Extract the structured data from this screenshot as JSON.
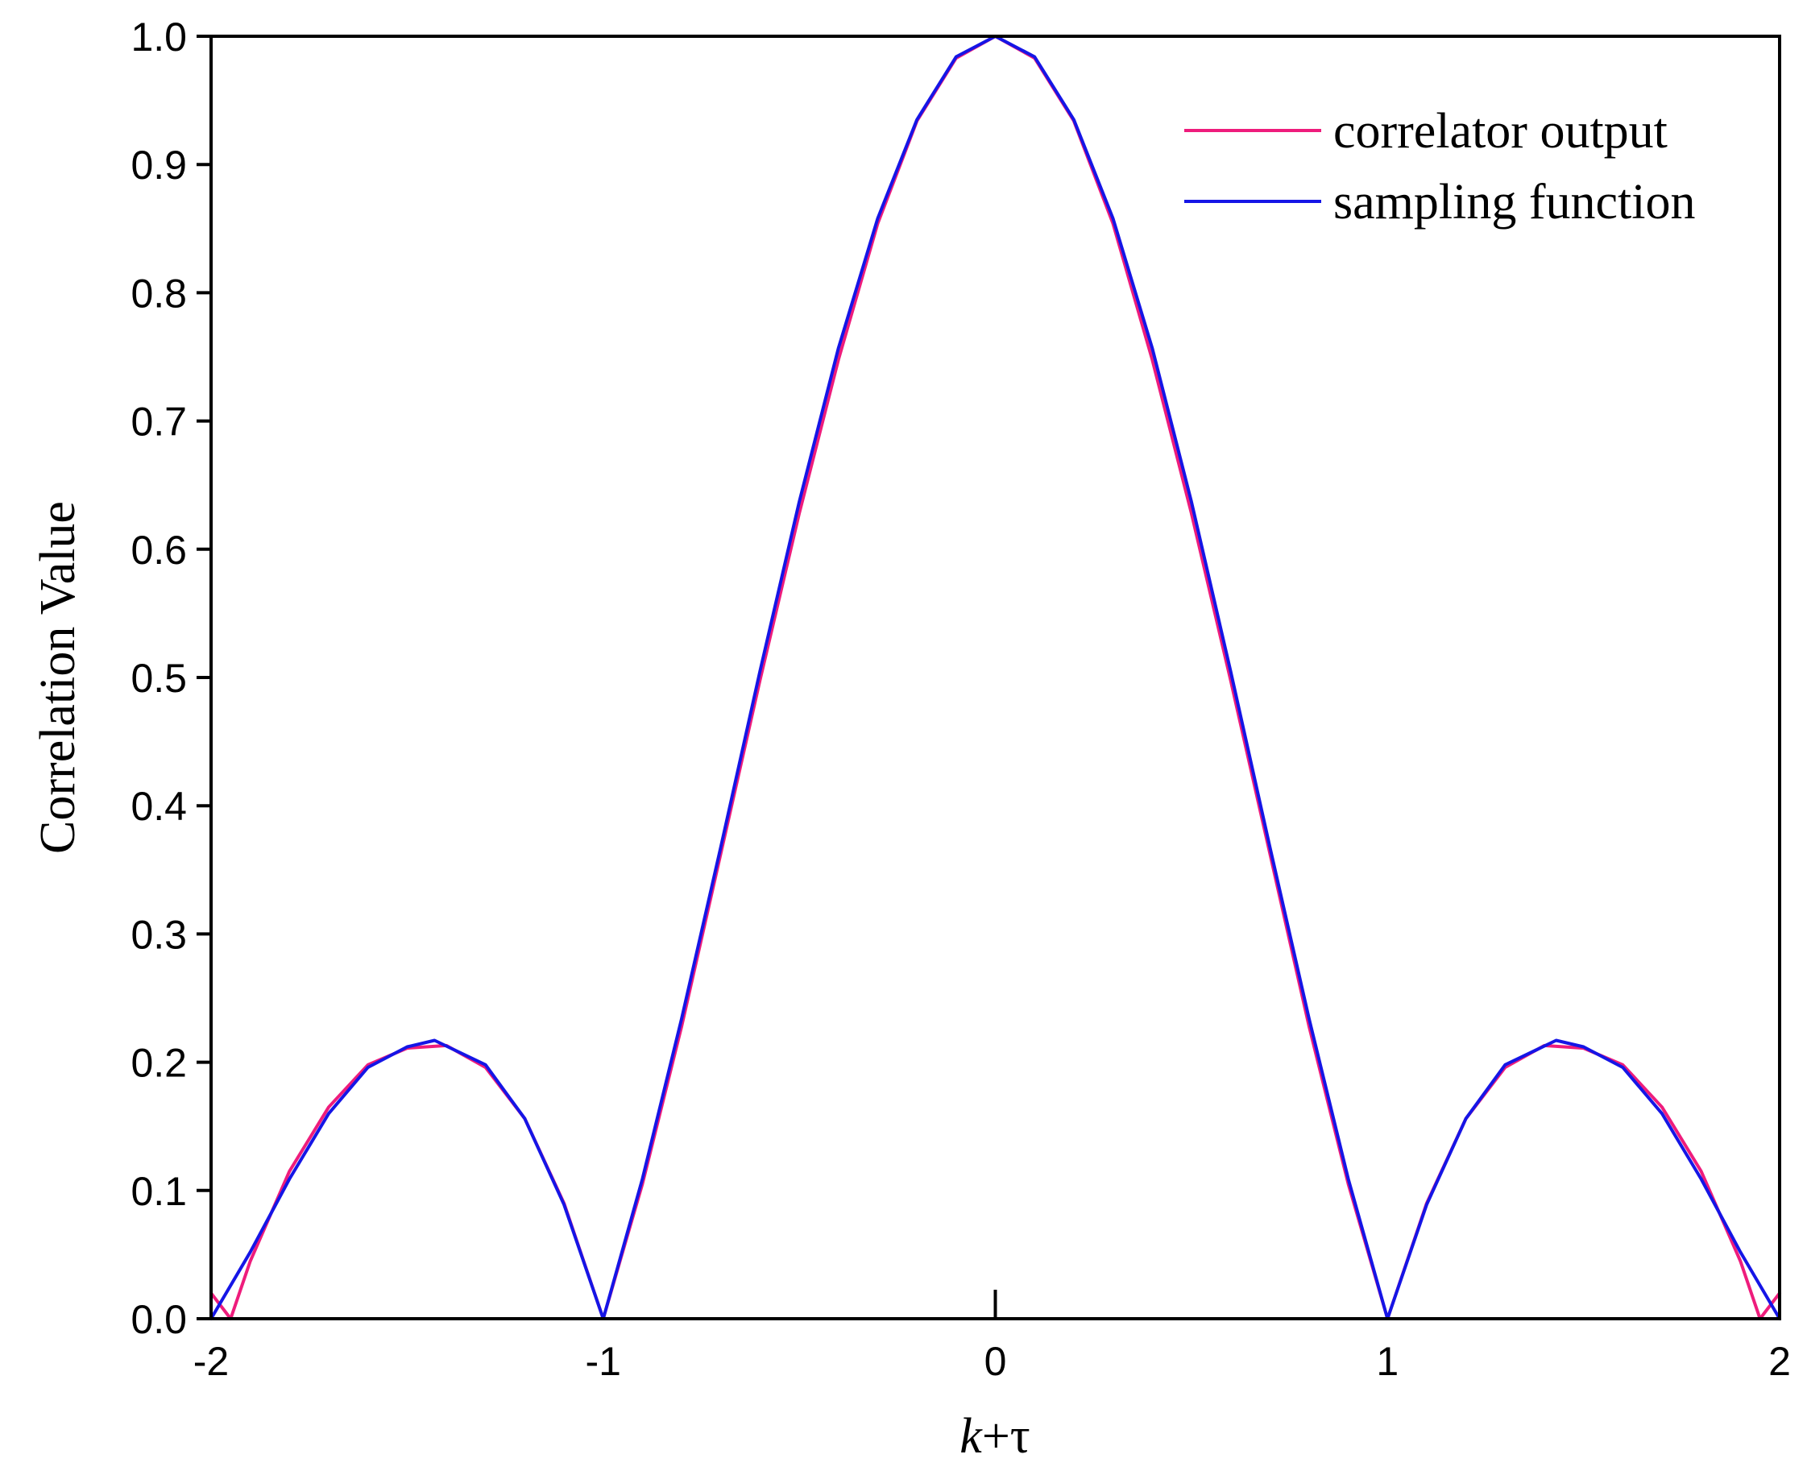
{
  "chart_data": {
    "type": "line",
    "title": "",
    "xlabel_var": "k",
    "xlabel_rest": "+τ",
    "ylabel": "Correlation Value",
    "xlim": [
      -2,
      2
    ],
    "ylim": [
      0,
      1.0
    ],
    "x_ticks": [
      -2,
      -1,
      0,
      1,
      2
    ],
    "x_tick_labels": [
      "-2",
      "-1",
      "0",
      "1",
      "2"
    ],
    "y_ticks": [
      0.0,
      0.1,
      0.2,
      0.3,
      0.4,
      0.5,
      0.6,
      0.7,
      0.8,
      0.9,
      1.0
    ],
    "y_tick_labels": [
      "0.0",
      "0.1",
      "0.2",
      "0.3",
      "0.4",
      "0.5",
      "0.6",
      "0.7",
      "0.8",
      "0.9",
      "1.0"
    ],
    "grid": false,
    "legend_position": "top-right",
    "series": [
      {
        "name": "correlator output",
        "color": "#ee1c7c",
        "points": [
          [
            -2.0,
            0.02
          ],
          [
            -1.95,
            0.0
          ],
          [
            -1.9,
            0.045
          ],
          [
            -1.8,
            0.115
          ],
          [
            -1.7,
            0.165
          ],
          [
            -1.6,
            0.198
          ],
          [
            -1.5,
            0.211
          ],
          [
            -1.4,
            0.213
          ],
          [
            -1.3,
            0.196
          ],
          [
            -1.2,
            0.156
          ],
          [
            -1.1,
            0.09
          ],
          [
            -1.0,
            0.0
          ],
          [
            -0.9,
            0.105
          ],
          [
            -0.8,
            0.228
          ],
          [
            -0.7,
            0.363
          ],
          [
            -0.6,
            0.498
          ],
          [
            -0.5,
            0.628
          ],
          [
            -0.4,
            0.748
          ],
          [
            -0.3,
            0.854
          ],
          [
            -0.2,
            0.934
          ],
          [
            -0.1,
            0.983
          ],
          [
            0.0,
            1.0
          ],
          [
            0.1,
            0.983
          ],
          [
            0.2,
            0.934
          ],
          [
            0.3,
            0.854
          ],
          [
            0.4,
            0.748
          ],
          [
            0.5,
            0.628
          ],
          [
            0.6,
            0.498
          ],
          [
            0.7,
            0.363
          ],
          [
            0.8,
            0.228
          ],
          [
            0.9,
            0.105
          ],
          [
            1.0,
            0.0
          ],
          [
            1.1,
            0.09
          ],
          [
            1.2,
            0.156
          ],
          [
            1.3,
            0.196
          ],
          [
            1.4,
            0.213
          ],
          [
            1.5,
            0.211
          ],
          [
            1.6,
            0.198
          ],
          [
            1.7,
            0.165
          ],
          [
            1.8,
            0.115
          ],
          [
            1.9,
            0.045
          ],
          [
            1.95,
            0.0
          ],
          [
            2.0,
            0.02
          ]
        ]
      },
      {
        "name": "sampling function",
        "color": "#1515e6",
        "points": [
          [
            -2.0,
            0.0
          ],
          [
            -1.9,
            0.052
          ],
          [
            -1.8,
            0.109
          ],
          [
            -1.7,
            0.16
          ],
          [
            -1.6,
            0.196
          ],
          [
            -1.5,
            0.212
          ],
          [
            -1.43,
            0.217
          ],
          [
            -1.3,
            0.198
          ],
          [
            -1.2,
            0.156
          ],
          [
            -1.1,
            0.089
          ],
          [
            -1.0,
            0.0
          ],
          [
            -0.9,
            0.109
          ],
          [
            -0.8,
            0.234
          ],
          [
            -0.7,
            0.368
          ],
          [
            -0.6,
            0.505
          ],
          [
            -0.5,
            0.637
          ],
          [
            -0.4,
            0.757
          ],
          [
            -0.3,
            0.858
          ],
          [
            -0.2,
            0.935
          ],
          [
            -0.1,
            0.984
          ],
          [
            0.0,
            1.0
          ],
          [
            0.1,
            0.984
          ],
          [
            0.2,
            0.935
          ],
          [
            0.3,
            0.858
          ],
          [
            0.4,
            0.757
          ],
          [
            0.5,
            0.637
          ],
          [
            0.6,
            0.505
          ],
          [
            0.7,
            0.368
          ],
          [
            0.8,
            0.234
          ],
          [
            0.9,
            0.109
          ],
          [
            1.0,
            0.0
          ],
          [
            1.1,
            0.089
          ],
          [
            1.2,
            0.156
          ],
          [
            1.3,
            0.198
          ],
          [
            1.43,
            0.217
          ],
          [
            1.5,
            0.212
          ],
          [
            1.6,
            0.196
          ],
          [
            1.7,
            0.16
          ],
          [
            1.8,
            0.109
          ],
          [
            1.9,
            0.052
          ],
          [
            2.0,
            0.0
          ]
        ]
      }
    ]
  }
}
